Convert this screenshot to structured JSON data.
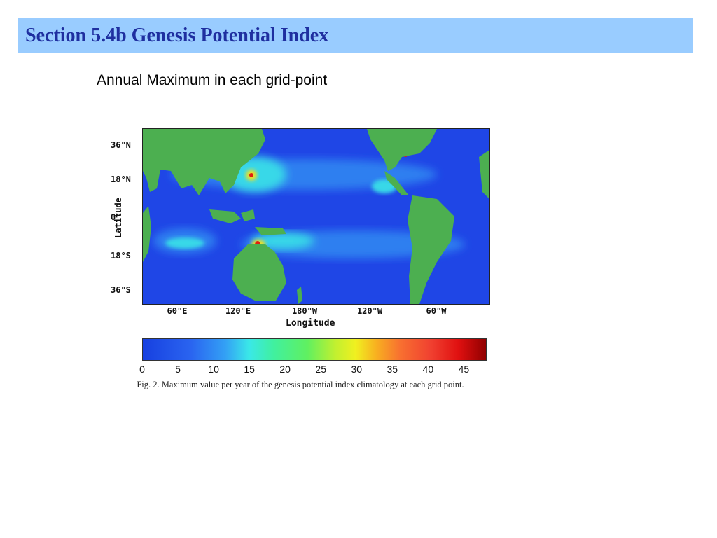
{
  "header": {
    "title": "Section 5.4b Genesis Potential Index"
  },
  "subtitle": "Annual Maximum in each grid-point",
  "map": {
    "y_axis_label": "Latitude",
    "x_axis_label": "Longitude",
    "lat_ticks": [
      "36°N",
      "18°N",
      "0°",
      "18°S",
      "36°S"
    ],
    "lon_ticks": [
      "60°E",
      "120°E",
      "180°W",
      "120°W",
      "60°W"
    ],
    "colors": {
      "ocean": "#1f46e6",
      "land": "#4caf50",
      "low_field": "#2f7ff0",
      "mid_field": "#38d8e8",
      "high_field": "#f0e020",
      "peak_field": "#e02010"
    }
  },
  "colorbar": {
    "ticks": [
      "0",
      "5",
      "10",
      "15",
      "20",
      "25",
      "30",
      "35",
      "40",
      "45"
    ],
    "range": [
      0,
      48
    ]
  },
  "caption": {
    "fig_label": "Fig. 2.",
    "text": "Maximum value per year of the genesis potential index climatology at each grid point."
  }
}
